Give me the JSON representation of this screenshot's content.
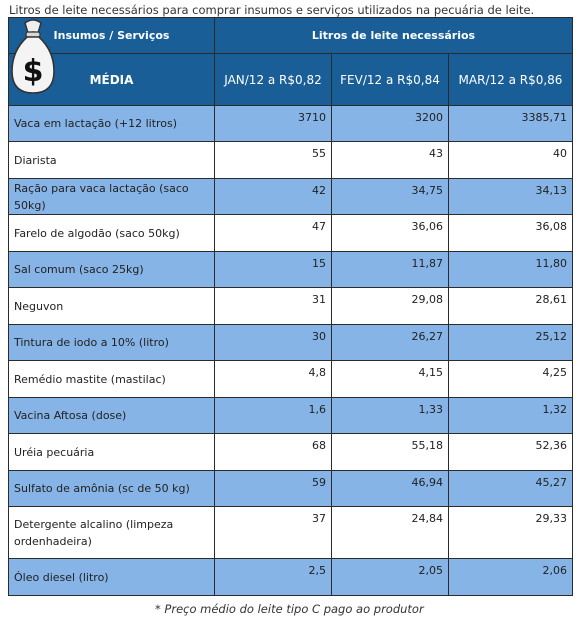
{
  "caption": "Litros de leite necessários para comprar insumos e serviços utilizados na pecuária de leite.",
  "header": {
    "col1_top": "Insumos / Serviços",
    "col2_top": "Litros de leite necessários",
    "col1_bottom": "MÉDIA",
    "months": [
      "JAN/12 a R$0,82",
      "FEV/12 a R$0,84",
      "MAR/12 a R$0,86"
    ],
    "money_sign": "$"
  },
  "rows": [
    {
      "name": "Vaca em lactação (+12 litros)",
      "values": [
        "3710",
        "3200",
        "3385,71"
      ]
    },
    {
      "name": "Diarista",
      "values": [
        "55",
        "43",
        "40"
      ]
    },
    {
      "name": "Ração para vaca lactação (saco 50kg)",
      "values": [
        "42",
        "34,75",
        "34,13"
      ]
    },
    {
      "name": "Farelo de algodão (saco 50kg)",
      "values": [
        "47",
        "36,06",
        "36,08"
      ]
    },
    {
      "name": "Sal comum (saco 25kg)",
      "values": [
        "15",
        "11,87",
        "11,80"
      ]
    },
    {
      "name": "Neguvon",
      "values": [
        "31",
        "29,08",
        "28,61"
      ]
    },
    {
      "name": "Tintura de iodo a 10% (litro)",
      "values": [
        "30",
        "26,27",
        "25,12"
      ]
    },
    {
      "name": "Remédio mastite (mastilac)",
      "values": [
        "4,8",
        "4,15",
        "4,25"
      ]
    },
    {
      "name": "Vacina Aftosa (dose)",
      "values": [
        "1,6",
        "1,33",
        "1,32"
      ]
    },
    {
      "name": "Uréia pecuária",
      "values": [
        "68",
        "55,18",
        "52,36"
      ]
    },
    {
      "name": "Sulfato de amônia (sc de 50 kg)",
      "values": [
        "59",
        "46,94",
        "45,27"
      ]
    },
    {
      "name": "Detergente alcalino (limpeza ordenhadeira)",
      "values": [
        "37",
        "24,84",
        "29,33"
      ]
    },
    {
      "name": "Óleo diesel (litro)",
      "values": [
        "2,5",
        "2,05",
        "2,06"
      ]
    }
  ],
  "footnote": "* Preço médio do leite tipo C pago ao produtor",
  "colors": {
    "header": "#1a5e98",
    "row_blue": "#86b4e7",
    "row_white": "#ffffff"
  }
}
